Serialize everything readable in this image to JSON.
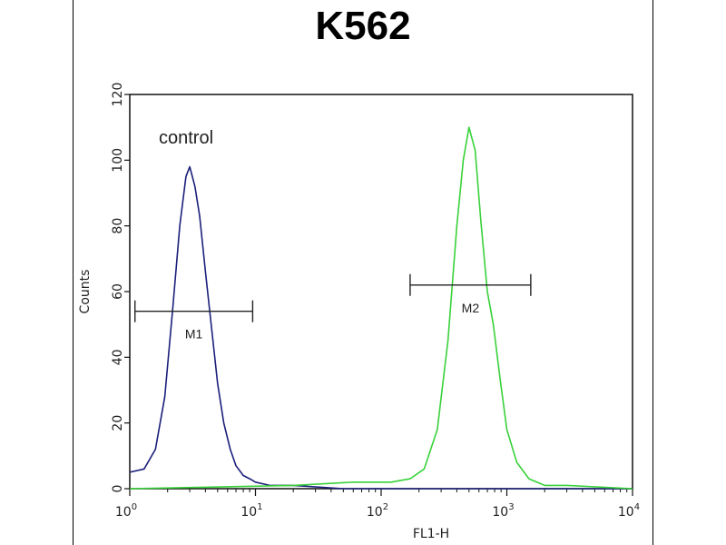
{
  "chart_data": {
    "type": "line",
    "title": "K562",
    "xlabel": "FL1-H",
    "ylabel": "Counts",
    "x_scale": "log",
    "xlim": [
      1,
      10000
    ],
    "ylim": [
      0,
      120
    ],
    "x_ticks": [
      {
        "base": "10",
        "exp": "0",
        "value": 1
      },
      {
        "base": "10",
        "exp": "1",
        "value": 10
      },
      {
        "base": "10",
        "exp": "2",
        "value": 100
      },
      {
        "base": "10",
        "exp": "3",
        "value": 1000
      },
      {
        "base": "10",
        "exp": "4",
        "value": 10000
      }
    ],
    "y_ticks": [
      0,
      20,
      40,
      60,
      80,
      100,
      120
    ],
    "annotation": "control",
    "series": [
      {
        "color": "#1a1f7a",
        "points": [
          [
            1.0,
            5
          ],
          [
            1.3,
            6
          ],
          [
            1.6,
            12
          ],
          [
            1.9,
            28
          ],
          [
            2.2,
            55
          ],
          [
            2.5,
            80
          ],
          [
            2.8,
            95
          ],
          [
            3.0,
            98
          ],
          [
            3.3,
            92
          ],
          [
            3.6,
            83
          ],
          [
            4.0,
            66
          ],
          [
            4.5,
            48
          ],
          [
            5.0,
            32
          ],
          [
            5.6,
            20
          ],
          [
            6.3,
            12
          ],
          [
            7.0,
            7
          ],
          [
            8.0,
            4
          ],
          [
            9.0,
            3
          ],
          [
            10,
            2
          ],
          [
            13,
            1
          ],
          [
            20,
            1
          ],
          [
            50,
            0
          ],
          [
            10000,
            0
          ]
        ]
      },
      {
        "color": "#39d13a",
        "points": [
          [
            1,
            0
          ],
          [
            20,
            1
          ],
          [
            60,
            2
          ],
          [
            120,
            2
          ],
          [
            170,
            3
          ],
          [
            220,
            6
          ],
          [
            280,
            18
          ],
          [
            340,
            45
          ],
          [
            400,
            80
          ],
          [
            450,
            100
          ],
          [
            500,
            110
          ],
          [
            560,
            103
          ],
          [
            620,
            82
          ],
          [
            700,
            60
          ],
          [
            780,
            50
          ],
          [
            880,
            34
          ],
          [
            1000,
            18
          ],
          [
            1200,
            8
          ],
          [
            1500,
            3
          ],
          [
            2000,
            1
          ],
          [
            3000,
            1
          ],
          [
            10000,
            0
          ]
        ]
      }
    ],
    "gates": [
      {
        "label": "M1",
        "x_start": 1.1,
        "x_end": 9.5,
        "y": 54
      },
      {
        "label": "M2",
        "x_start": 170,
        "x_end": 1550,
        "y": 62
      }
    ]
  }
}
